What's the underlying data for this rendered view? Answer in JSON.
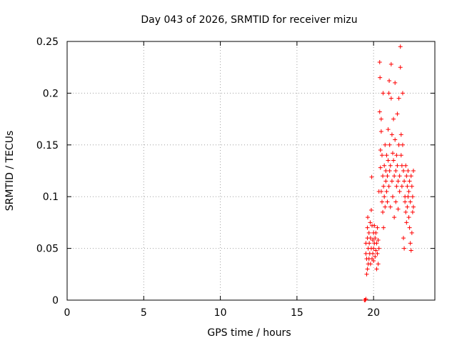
{
  "chart_data": {
    "type": "scatter",
    "title": "Day 043 of 2026, SRMTID for receiver mizu",
    "xlabel": "GPS time / hours",
    "ylabel": "SRMTID / TECUs",
    "xlim": [
      0,
      24
    ],
    "ylim": [
      0,
      0.25
    ],
    "xticks": [
      0,
      5,
      10,
      15,
      20
    ],
    "xtick_labels": [
      "0",
      "5",
      "10",
      "15",
      "20"
    ],
    "yticks": [
      0,
      0.05,
      0.1,
      0.15,
      0.2,
      0.25
    ],
    "ytick_labels": [
      "0",
      "0.05",
      "0.1",
      "0.15",
      "0.2",
      "0.25"
    ],
    "grid": true,
    "marker": "plus",
    "series": [
      {
        "color": "#ff0000",
        "points": [
          [
            19.4,
            0.0
          ],
          [
            19.45,
            0.0
          ],
          [
            19.5,
            0.001
          ],
          [
            19.5,
            0.045
          ],
          [
            19.5,
            0.055
          ],
          [
            19.55,
            0.04
          ],
          [
            19.55,
            0.025
          ],
          [
            19.6,
            0.03
          ],
          [
            19.6,
            0.06
          ],
          [
            19.6,
            0.07
          ],
          [
            19.62,
            0.08
          ],
          [
            19.65,
            0.035
          ],
          [
            19.65,
            0.05
          ],
          [
            19.7,
            0.065
          ],
          [
            19.7,
            0.04
          ],
          [
            19.72,
            0.055
          ],
          [
            19.75,
            0.045
          ],
          [
            19.78,
            0.075
          ],
          [
            19.8,
            0.06
          ],
          [
            19.8,
            0.035
          ],
          [
            19.85,
            0.05
          ],
          [
            19.85,
            0.087
          ],
          [
            19.88,
            0.119
          ],
          [
            19.9,
            0.072
          ],
          [
            19.9,
            0.04
          ],
          [
            19.95,
            0.058
          ],
          [
            19.95,
            0.045
          ],
          [
            20.0,
            0.05
          ],
          [
            20.0,
            0.065
          ],
          [
            20.0,
            0.038
          ],
          [
            20.05,
            0.055
          ],
          [
            20.05,
            0.072
          ],
          [
            20.1,
            0.042
          ],
          [
            20.1,
            0.06
          ],
          [
            20.15,
            0.048
          ],
          [
            20.15,
            0.065
          ],
          [
            20.2,
            0.055
          ],
          [
            20.2,
            0.03
          ],
          [
            20.25,
            0.045
          ],
          [
            20.25,
            0.07
          ],
          [
            20.3,
            0.058
          ],
          [
            20.3,
            0.035
          ],
          [
            20.35,
            0.05
          ],
          [
            20.35,
            0.105
          ],
          [
            20.4,
            0.182
          ],
          [
            20.4,
            0.23
          ],
          [
            20.42,
            0.215
          ],
          [
            20.45,
            0.145
          ],
          [
            20.45,
            0.128
          ],
          [
            20.5,
            0.175
          ],
          [
            20.5,
            0.163
          ],
          [
            20.5,
            0.105
          ],
          [
            20.55,
            0.14
          ],
          [
            20.55,
            0.095
          ],
          [
            20.6,
            0.12
          ],
          [
            20.6,
            0.085
          ],
          [
            20.62,
            0.2
          ],
          [
            20.65,
            0.11
          ],
          [
            20.65,
            0.07
          ],
          [
            20.7,
            0.13
          ],
          [
            20.7,
            0.1
          ],
          [
            20.75,
            0.09
          ],
          [
            20.75,
            0.15
          ],
          [
            20.8,
            0.115
          ],
          [
            20.8,
            0.125
          ],
          [
            20.85,
            0.105
          ],
          [
            20.85,
            0.14
          ],
          [
            20.9,
            0.12
          ],
          [
            20.9,
            0.095
          ],
          [
            20.95,
            0.165
          ],
          [
            20.95,
            0.135
          ],
          [
            21.0,
            0.11
          ],
          [
            21.0,
            0.2
          ],
          [
            21.02,
            0.212
          ],
          [
            21.05,
            0.15
          ],
          [
            21.05,
            0.125
          ],
          [
            21.1,
            0.13
          ],
          [
            21.1,
            0.09
          ],
          [
            21.15,
            0.228
          ],
          [
            21.15,
            0.195
          ],
          [
            21.2,
            0.16
          ],
          [
            21.2,
            0.115
          ],
          [
            21.25,
            0.142
          ],
          [
            21.25,
            0.1
          ],
          [
            21.3,
            0.175
          ],
          [
            21.3,
            0.135
          ],
          [
            21.35,
            0.12
          ],
          [
            21.35,
            0.08
          ],
          [
            21.4,
            0.21
          ],
          [
            21.4,
            0.155
          ],
          [
            21.45,
            0.125
          ],
          [
            21.45,
            0.095
          ],
          [
            21.5,
            0.14
          ],
          [
            21.5,
            0.11
          ],
          [
            21.55,
            0.18
          ],
          [
            21.55,
            0.13
          ],
          [
            21.6,
            0.115
          ],
          [
            21.6,
            0.088
          ],
          [
            21.65,
            0.195
          ],
          [
            21.65,
            0.15
          ],
          [
            21.7,
            0.12
          ],
          [
            21.7,
            0.105
          ],
          [
            21.75,
            0.245
          ],
          [
            21.75,
            0.225
          ],
          [
            21.8,
            0.16
          ],
          [
            21.8,
            0.14
          ],
          [
            21.85,
            0.13
          ],
          [
            21.85,
            0.11
          ],
          [
            21.9,
            0.2
          ],
          [
            21.9,
            0.15
          ],
          [
            21.95,
            0.125
          ],
          [
            21.95,
            0.06
          ],
          [
            22.0,
            0.115
          ],
          [
            22.0,
            0.05
          ],
          [
            22.05,
            0.1
          ],
          [
            22.05,
            0.095
          ],
          [
            22.1,
            0.13
          ],
          [
            22.1,
            0.085
          ],
          [
            22.15,
            0.12
          ],
          [
            22.15,
            0.075
          ],
          [
            22.2,
            0.11
          ],
          [
            22.2,
            0.09
          ],
          [
            22.25,
            0.125
          ],
          [
            22.25,
            0.1
          ],
          [
            22.3,
            0.105
          ],
          [
            22.3,
            0.08
          ],
          [
            22.35,
            0.115
          ],
          [
            22.35,
            0.07
          ],
          [
            22.4,
            0.095
          ],
          [
            22.4,
            0.055
          ],
          [
            22.45,
            0.12
          ],
          [
            22.45,
            0.048
          ],
          [
            22.5,
            0.11
          ],
          [
            22.5,
            0.065
          ],
          [
            22.55,
            0.1
          ],
          [
            22.55,
            0.085
          ],
          [
            22.6,
            0.125
          ],
          [
            22.6,
            0.09
          ]
        ]
      }
    ]
  }
}
